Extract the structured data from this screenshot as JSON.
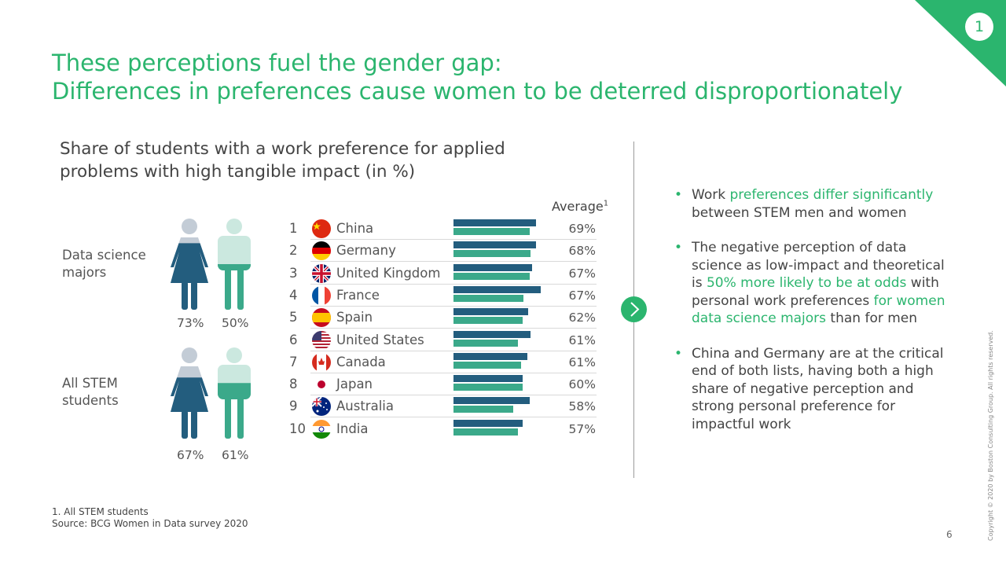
{
  "page": {
    "badge": "1",
    "title_line1": "These perceptions fuel the gender gap:",
    "title_line2": "Differences in preferences cause women to be deterred disproportionately",
    "page_number": "6",
    "copyright": "Copyright © 2020 by Boston Consulting Group. All rights reserved."
  },
  "chart": {
    "subtitle_line1": "Share of students with a work preference for applied",
    "subtitle_line2": "problems with high tangible impact (in %)",
    "average_label": "Average",
    "average_sup": "1"
  },
  "groups": [
    {
      "label_line1": "Data science",
      "label_line2": "majors",
      "women_pct": "73%",
      "men_pct": "50%",
      "women_share": 0.73,
      "men_share": 0.5
    },
    {
      "label_line1": "All STEM",
      "label_line2": "students",
      "women_pct": "67%",
      "men_pct": "61%",
      "women_share": 0.67,
      "men_share": 0.61
    }
  ],
  "chart_data": {
    "type": "bar",
    "orientation": "horizontal",
    "categories": [
      "China",
      "Germany",
      "United Kingdom",
      "France",
      "Spain",
      "United States",
      "Canada",
      "Japan",
      "Australia",
      "India"
    ],
    "ranks": [
      "1",
      "2",
      "3",
      "4",
      "5",
      "6",
      "7",
      "8",
      "9",
      "10"
    ],
    "average_labels": [
      "69%",
      "68%",
      "67%",
      "67%",
      "62%",
      "61%",
      "61%",
      "60%",
      "58%",
      "57%"
    ],
    "series": [
      {
        "values": [
          72,
          72,
          68,
          76,
          65,
          67,
          64,
          60,
          66,
          60
        ],
        "color": "#235d7e"
      },
      {
        "values": [
          66,
          67,
          66,
          61,
          60,
          56,
          59,
          60,
          52,
          56
        ],
        "color": "#3ba98a"
      }
    ],
    "xlim": [
      0,
      110
    ],
    "note_2": "2"
  },
  "bullets": [
    {
      "parts": [
        {
          "t": "Work ",
          "g": false
        },
        {
          "t": "preferences differ significantly",
          "g": true
        },
        {
          "t": " between STEM men and women",
          "g": false
        }
      ]
    },
    {
      "parts": [
        {
          "t": "The negative perception of data science as low-impact and theoretical is ",
          "g": false
        },
        {
          "t": "50% more likely to be at odds",
          "g": true
        },
        {
          "t": " with personal work preferences ",
          "g": false
        },
        {
          "t": "for women data science majors",
          "g": true
        },
        {
          "t": " than for men",
          "g": false
        }
      ]
    },
    {
      "parts": [
        {
          "t": "China and Germany are at the critical end of both lists, having both a high share of negative perception and strong personal preference for impactful work",
          "g": false
        }
      ]
    }
  ],
  "footnotes": {
    "note1": "1. All STEM students",
    "source": "Source: BCG Women in Data survey 2020"
  },
  "colors": {
    "green": "#2bb56e",
    "dark_blue": "#235d7e",
    "teal": "#3ba98a",
    "female_light": "#c3ccd6",
    "male_light": "#cbe8df"
  }
}
